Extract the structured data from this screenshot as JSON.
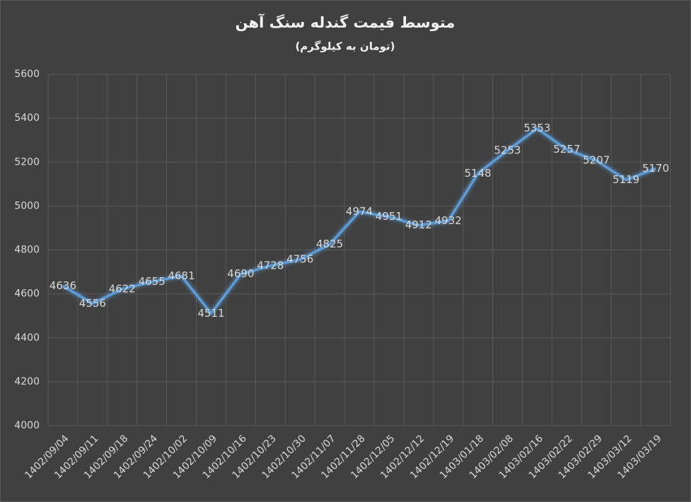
{
  "chart_data": {
    "type": "line",
    "title": "متوسط قیمت گندله سنگ آهن",
    "subtitle": "(تومان به کیلوگرم)",
    "categories": [
      "1402/09/04",
      "1402/09/11",
      "1402/09/18",
      "1402/09/24",
      "1402/10/02",
      "1402/10/09",
      "1402/10/16",
      "1402/10/23",
      "1402/10/30",
      "1402/11/07",
      "1402/11/28",
      "1402/12/05",
      "1402/12/12",
      "1402/12/19",
      "1403/01/18",
      "1403/02/08",
      "1403/02/16",
      "1403/02/22",
      "1403/02/29",
      "1403/03/12",
      "1403/03/19"
    ],
    "values": [
      4636,
      4556,
      4622,
      4655,
      4681,
      4511,
      4690,
      4728,
      4756,
      4825,
      4974,
      4951,
      4912,
      4932,
      5148,
      5253,
      5353,
      5257,
      5207,
      5119,
      5170
    ],
    "color": "#5b9bd5",
    "ylim": [
      4000,
      5600
    ],
    "yticks": [
      4000,
      4200,
      4400,
      4600,
      4800,
      5000,
      5200,
      5400,
      5600
    ],
    "grid": true
  }
}
